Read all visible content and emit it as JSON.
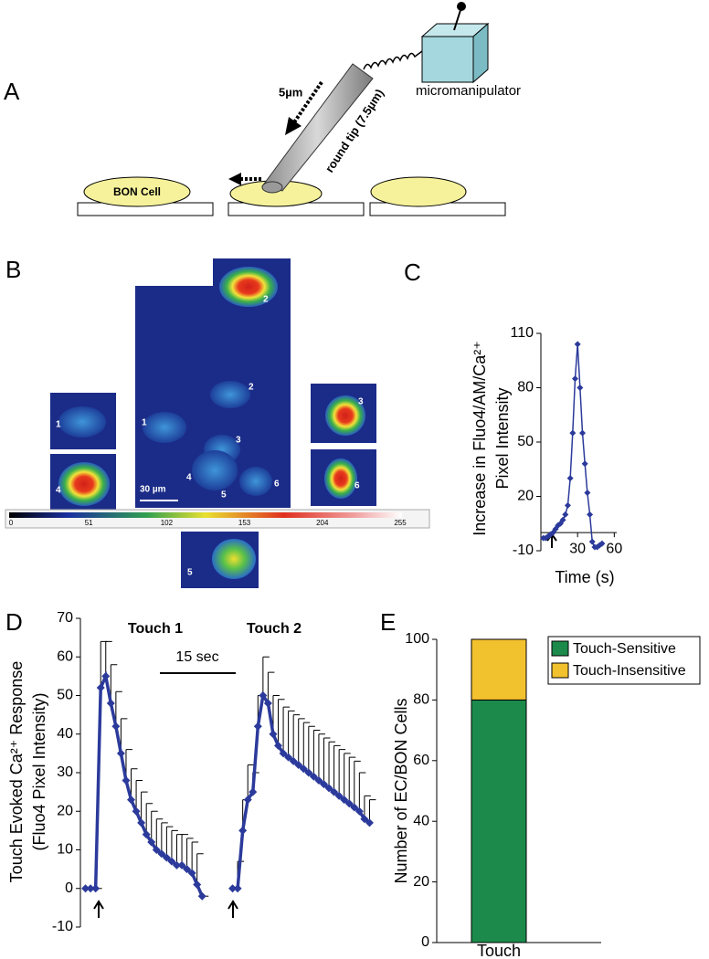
{
  "panel_labels": [
    "A",
    "B",
    "C",
    "D",
    "E"
  ],
  "diagram": {
    "retraction": "5µm",
    "probe": "round tip (7.5µm)",
    "device": "micromanipulator",
    "cell": "BON Cell"
  },
  "imaging": {
    "cell_numbers": [
      "1",
      "2",
      "3",
      "4",
      "5",
      "6"
    ],
    "inset_numbers": [
      "2",
      "1",
      "4",
      "3",
      "6",
      "5"
    ],
    "scale_bar": "30 µm",
    "colorbar_ticks": [
      0,
      51,
      102,
      153,
      204,
      255
    ]
  },
  "chart_data": [
    {
      "type": "line",
      "ylabel": [
        "Increase in Fluo4/AM/Ca²⁺",
        "Pixel Intensity"
      ],
      "xlabel": "Time (s)",
      "x": [
        2,
        4,
        6,
        8,
        10,
        12,
        14,
        16,
        18,
        20,
        22,
        24,
        26,
        28,
        30,
        32,
        34,
        36,
        38,
        40,
        42,
        44,
        46,
        48,
        50
      ],
      "series": [
        {
          "color": "#2b3a9b",
          "values": [
            -3,
            -3,
            -2,
            -1,
            0,
            2,
            4,
            5,
            7,
            10,
            15,
            30,
            55,
            85,
            104,
            80,
            55,
            38,
            22,
            10,
            -5,
            -8,
            -8,
            -7,
            -6
          ]
        }
      ],
      "xlim": [
        0,
        62
      ],
      "xticks": [
        30,
        60
      ],
      "ylim": [
        -10,
        110
      ],
      "yticks": [
        -10,
        20,
        50,
        80,
        110
      ]
    },
    {
      "type": "line",
      "ylabel": [
        "Touch Evoked Ca²⁺ Response",
        "(Fluo4 Pixel Intensity)"
      ],
      "annotations": [
        "Touch 1",
        "Touch 2",
        "15 sec"
      ],
      "x": [
        1,
        2,
        3,
        4,
        5,
        6,
        7,
        8,
        9,
        10,
        11,
        12,
        13,
        14,
        15,
        16,
        17,
        18,
        19,
        20,
        21,
        22,
        23,
        24,
        27,
        30,
        31,
        32,
        33,
        34,
        35,
        36,
        37,
        38,
        39,
        40,
        41,
        42,
        43,
        44,
        45,
        46,
        47,
        48,
        49,
        50,
        51,
        52,
        53,
        54,
        55,
        56,
        57
      ],
      "series": [
        {
          "color": "#2b3a9b",
          "values": [
            0,
            0,
            0,
            52,
            55,
            48,
            42,
            35,
            28,
            23,
            20,
            17,
            14,
            12,
            10,
            9,
            8,
            7,
            6,
            6,
            5,
            4,
            1,
            -2,
            null,
            0,
            0,
            15,
            23,
            25,
            42,
            50,
            48,
            40,
            37,
            35,
            34,
            33,
            32,
            31,
            30,
            29,
            28,
            27,
            26,
            25,
            24,
            23,
            22,
            21,
            20,
            18,
            17
          ],
          "errors": [
            0,
            0,
            0,
            12,
            9,
            10,
            9,
            9,
            8,
            8,
            8,
            8,
            8,
            8,
            8,
            8,
            8,
            8,
            8,
            8,
            8,
            8,
            8,
            0,
            null,
            0,
            7,
            8,
            9,
            5,
            8,
            10,
            8,
            10,
            12,
            12,
            12,
            12,
            12,
            12,
            12,
            12,
            12,
            12,
            12,
            12,
            12,
            12,
            12,
            12,
            10,
            6,
            6
          ]
        }
      ],
      "xlim": [
        0,
        58
      ],
      "ylim": [
        -10,
        70
      ],
      "yticks": [
        -10,
        0,
        10,
        20,
        30,
        40,
        50,
        60,
        70
      ]
    },
    {
      "type": "bar",
      "stacked": true,
      "ylabel": "Number of EC/BON Cells",
      "categories": [
        "Touch"
      ],
      "series": [
        {
          "name": "Touch-Sensitive",
          "color": "#1b8a4b",
          "values": [
            80
          ]
        },
        {
          "name": "Touch-Insensitive",
          "color": "#f2c12e",
          "values": [
            20
          ]
        }
      ],
      "ylim": [
        0,
        100
      ],
      "yticks": [
        0,
        20,
        40,
        60,
        80,
        100
      ],
      "legend": "upper right"
    }
  ]
}
